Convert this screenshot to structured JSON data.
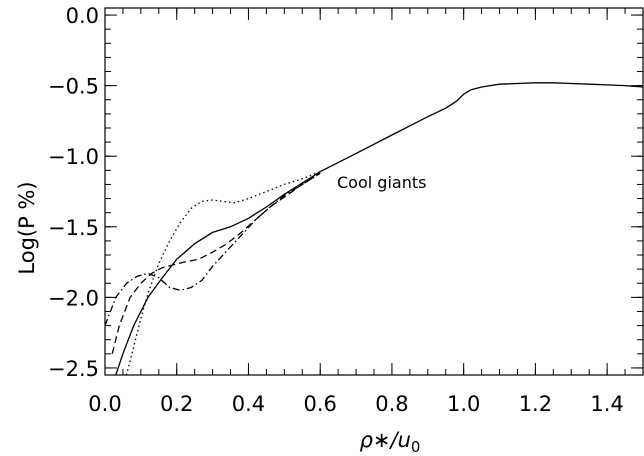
{
  "chart_data": {
    "type": "line",
    "title": "",
    "xlabel": "ρ∗/u0",
    "xlabel_main": "ρ∗/u",
    "xlabel_sub": "0",
    "ylabel": "Log(P %)",
    "xlim": [
      0.0,
      1.5
    ],
    "ylim": [
      -2.55,
      0.05
    ],
    "x_ticks": [
      0.0,
      0.2,
      0.4,
      0.6,
      0.8,
      1.0,
      1.2,
      1.4
    ],
    "x_tick_labels": [
      "0.0",
      "0.2",
      "0.4",
      "0.6",
      "0.8",
      "1.0",
      "1.2",
      "1.4"
    ],
    "y_ticks": [
      0.0,
      -0.5,
      -1.0,
      -1.5,
      -2.0,
      -2.5
    ],
    "y_tick_labels": [
      "0.0",
      "−0.5",
      "−1.0",
      "−1.5",
      "−2.0",
      "−2.5"
    ],
    "grid": false,
    "legend": "none",
    "annotation": "Cool giants",
    "line_color": "#000000",
    "series": [
      {
        "style": "solid",
        "x": [
          0.03,
          0.05,
          0.08,
          0.12,
          0.16,
          0.2,
          0.25,
          0.3,
          0.35,
          0.4,
          0.45,
          0.5,
          0.55,
          0.6,
          0.7,
          0.8,
          0.9,
          0.95,
          0.98,
          1.0,
          1.02,
          1.05,
          1.1,
          1.15,
          1.2,
          1.25,
          1.3,
          1.35,
          1.4,
          1.45,
          1.5
        ],
        "y": [
          -2.55,
          -2.4,
          -2.2,
          -2.0,
          -1.86,
          -1.73,
          -1.62,
          -1.54,
          -1.5,
          -1.44,
          -1.36,
          -1.27,
          -1.19,
          -1.11,
          -0.98,
          -0.85,
          -0.72,
          -0.66,
          -0.61,
          -0.56,
          -0.53,
          -0.51,
          -0.49,
          -0.485,
          -0.48,
          -0.48,
          -0.485,
          -0.49,
          -0.495,
          -0.5,
          -0.51
        ]
      },
      {
        "style": "dotted",
        "x": [
          0.06,
          0.08,
          0.1,
          0.12,
          0.15,
          0.18,
          0.21,
          0.24,
          0.27,
          0.3,
          0.33,
          0.36,
          0.4,
          0.45,
          0.5,
          0.55,
          0.6
        ],
        "y": [
          -2.55,
          -2.35,
          -2.15,
          -1.97,
          -1.76,
          -1.6,
          -1.47,
          -1.37,
          -1.32,
          -1.31,
          -1.32,
          -1.33,
          -1.3,
          -1.25,
          -1.2,
          -1.16,
          -1.11
        ]
      },
      {
        "style": "dashed",
        "x": [
          0.02,
          0.04,
          0.07,
          0.1,
          0.13,
          0.16,
          0.19,
          0.22,
          0.26,
          0.3,
          0.34,
          0.38,
          0.42,
          0.46,
          0.5,
          0.55,
          0.6
        ],
        "y": [
          -2.4,
          -2.2,
          -2.0,
          -1.9,
          -1.83,
          -1.79,
          -1.77,
          -1.75,
          -1.73,
          -1.68,
          -1.62,
          -1.54,
          -1.45,
          -1.36,
          -1.29,
          -1.2,
          -1.12
        ]
      },
      {
        "style": "dashdot",
        "x": [
          0.0,
          0.03,
          0.06,
          0.09,
          0.12,
          0.15,
          0.18,
          0.21,
          0.24,
          0.27,
          0.3,
          0.34,
          0.38,
          0.42,
          0.46,
          0.5,
          0.55,
          0.6
        ],
        "y": [
          -2.2,
          -2.0,
          -1.9,
          -1.85,
          -1.83,
          -1.86,
          -1.93,
          -1.95,
          -1.93,
          -1.88,
          -1.78,
          -1.67,
          -1.56,
          -1.45,
          -1.36,
          -1.28,
          -1.2,
          -1.12
        ]
      }
    ]
  }
}
